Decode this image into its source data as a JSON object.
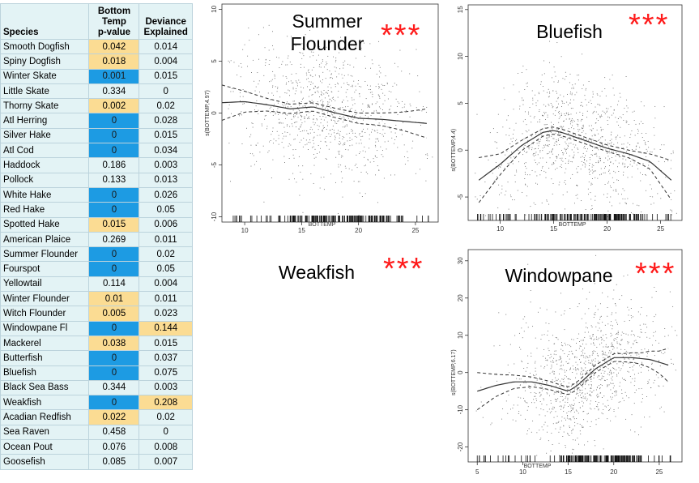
{
  "table": {
    "headers": {
      "species": "Species",
      "pvalue_line1": "Bottom",
      "pvalue_line2": "Temp",
      "pvalue_line3": "p-value",
      "dev_line1": "Deviance",
      "dev_line2": "Explained"
    },
    "colors": {
      "significant_blue": "#1d9be3",
      "highlight_yellow": "#fbdc93",
      "cell_bg": "#e3f3f5"
    },
    "rows": [
      {
        "species": "Smooth Dogfish",
        "pvalue": "0.042",
        "deviance": "0.014",
        "p_hl": "yellow",
        "d_hl": ""
      },
      {
        "species": "Spiny Dogfish",
        "pvalue": "0.018",
        "deviance": "0.004",
        "p_hl": "yellow",
        "d_hl": ""
      },
      {
        "species": "Winter Skate",
        "pvalue": "0.001",
        "deviance": "0.015",
        "p_hl": "blue",
        "d_hl": ""
      },
      {
        "species": "Little Skate",
        "pvalue": "0.334",
        "deviance": "0",
        "p_hl": "",
        "d_hl": ""
      },
      {
        "species": "Thorny Skate",
        "pvalue": "0.002",
        "deviance": "0.02",
        "p_hl": "yellow",
        "d_hl": ""
      },
      {
        "species": "Atl Herring",
        "pvalue": "0",
        "deviance": "0.028",
        "p_hl": "blue",
        "d_hl": ""
      },
      {
        "species": "Silver Hake",
        "pvalue": "0",
        "deviance": "0.015",
        "p_hl": "blue",
        "d_hl": ""
      },
      {
        "species": "Atl Cod",
        "pvalue": "0",
        "deviance": "0.034",
        "p_hl": "blue",
        "d_hl": ""
      },
      {
        "species": "Haddock",
        "pvalue": "0.186",
        "deviance": "0.003",
        "p_hl": "",
        "d_hl": ""
      },
      {
        "species": "Pollock",
        "pvalue": "0.133",
        "deviance": "0.013",
        "p_hl": "",
        "d_hl": ""
      },
      {
        "species": "White Hake",
        "pvalue": "0",
        "deviance": "0.026",
        "p_hl": "blue",
        "d_hl": ""
      },
      {
        "species": "Red Hake",
        "pvalue": "0",
        "deviance": "0.05",
        "p_hl": "blue",
        "d_hl": ""
      },
      {
        "species": "Spotted Hake",
        "pvalue": "0.015",
        "deviance": "0.006",
        "p_hl": "yellow",
        "d_hl": ""
      },
      {
        "species": "American Plaice",
        "pvalue": "0.269",
        "deviance": "0.011",
        "p_hl": "",
        "d_hl": ""
      },
      {
        "species": "Summer Flounder",
        "pvalue": "0",
        "deviance": "0.02",
        "p_hl": "blue",
        "d_hl": ""
      },
      {
        "species": "Fourspot",
        "pvalue": "0",
        "deviance": "0.05",
        "p_hl": "blue",
        "d_hl": ""
      },
      {
        "species": "Yellowtail",
        "pvalue": "0.114",
        "deviance": "0.004",
        "p_hl": "",
        "d_hl": ""
      },
      {
        "species": "Winter Flounder",
        "pvalue": "0.01",
        "deviance": "0.011",
        "p_hl": "yellow",
        "d_hl": ""
      },
      {
        "species": "Witch Flounder",
        "pvalue": "0.005",
        "deviance": "0.023",
        "p_hl": "yellow",
        "d_hl": ""
      },
      {
        "species": "Windowpane Fl",
        "pvalue": "0",
        "deviance": "0.144",
        "p_hl": "blue",
        "d_hl": "yellow"
      },
      {
        "species": "Mackerel",
        "pvalue": "0.038",
        "deviance": "0.015",
        "p_hl": "yellow",
        "d_hl": ""
      },
      {
        "species": "Butterfish",
        "pvalue": "0",
        "deviance": "0.037",
        "p_hl": "blue",
        "d_hl": ""
      },
      {
        "species": "Bluefish",
        "pvalue": "0",
        "deviance": "0.075",
        "p_hl": "blue",
        "d_hl": ""
      },
      {
        "species": "Black Sea Bass",
        "pvalue": "0.344",
        "deviance": "0.003",
        "p_hl": "",
        "d_hl": ""
      },
      {
        "species": "Weakfish",
        "pvalue": "0",
        "deviance": "0.208",
        "p_hl": "blue",
        "d_hl": "yellow"
      },
      {
        "species": "Acadian Redfish",
        "pvalue": "0.022",
        "deviance": "0.02",
        "p_hl": "yellow",
        "d_hl": ""
      },
      {
        "species": "Sea Raven",
        "pvalue": "0.458",
        "deviance": "0",
        "p_hl": "",
        "d_hl": ""
      },
      {
        "species": "Ocean Pout",
        "pvalue": "0.076",
        "deviance": "0.008",
        "p_hl": "",
        "d_hl": ""
      },
      {
        "species": "Goosefish",
        "pvalue": "0.085",
        "deviance": "0.007",
        "p_hl": "",
        "d_hl": ""
      }
    ]
  },
  "labels": {
    "summer_title_1": "Summer",
    "summer_title_2": "Flounder",
    "bluefish_title": "Bluefish",
    "weakfish_title": "Weakfish",
    "windowpane_title": "Windowpane",
    "stars": "***",
    "star_color": "#ff1a1a"
  },
  "chart_data": [
    {
      "type": "scatter",
      "title": "Summer Flounder",
      "xlabel": "BOTTEMP",
      "ylabel": "s(BOTTEMP,4.97)",
      "xlim": [
        8,
        27
      ],
      "ylim": [
        -10.5,
        10.5
      ],
      "xticks": [
        10,
        15,
        20,
        25
      ],
      "yticks": [
        -10,
        -5,
        0,
        5,
        10
      ],
      "ytick_labels": [
        "-10",
        "-5",
        "0",
        "5",
        "10"
      ],
      "xtick_labels": [
        "10",
        "15",
        "20",
        "25"
      ],
      "smooth": {
        "x": [
          8,
          10,
          12,
          14,
          16,
          18,
          20,
          22,
          24,
          26
        ],
        "y": [
          1.0,
          1.1,
          0.8,
          0.4,
          0.6,
          0.0,
          -0.5,
          -0.6,
          -0.8,
          -1.0
        ]
      },
      "band_halfwidth": {
        "x": [
          8,
          10,
          12,
          14,
          16,
          18,
          20,
          22,
          24,
          26
        ],
        "y": [
          1.7,
          1.0,
          0.6,
          0.45,
          0.4,
          0.45,
          0.5,
          0.6,
          0.9,
          1.4
        ]
      },
      "scatter_spread": 3.2,
      "significance": "***"
    },
    {
      "type": "scatter",
      "title": "Bluefish",
      "xlabel": "BOTTEMP",
      "ylabel": "s(BOTTEMP,4.4)",
      "xlim": [
        7,
        27
      ],
      "ylim": [
        -7.5,
        15.5
      ],
      "xticks": [
        10,
        15,
        20,
        25
      ],
      "yticks": [
        -5,
        0,
        5,
        10,
        15
      ],
      "ytick_labels": [
        "-5",
        "0",
        "5",
        "10",
        "15"
      ],
      "xtick_labels": [
        "10",
        "15",
        "20",
        "25"
      ],
      "smooth": {
        "x": [
          8,
          10,
          12,
          14,
          15,
          16,
          18,
          20,
          22,
          24,
          26
        ],
        "y": [
          -3.2,
          -1.5,
          0.5,
          1.9,
          2.1,
          1.8,
          1.0,
          0.2,
          -0.4,
          -1.2,
          -3.2
        ]
      },
      "band_halfwidth": {
        "x": [
          8,
          10,
          12,
          14,
          16,
          18,
          20,
          22,
          24,
          26
        ],
        "y": [
          2.4,
          1.1,
          0.55,
          0.4,
          0.35,
          0.35,
          0.35,
          0.4,
          0.8,
          2.1
        ]
      },
      "scatter_spread": 3.5,
      "significance": "***"
    },
    {
      "type": "scatter",
      "title": "Windowpane",
      "xlabel": "BOTTEMP",
      "ylabel": "s(BOTTEMP,6.17)",
      "xlim": [
        4,
        27.5
      ],
      "ylim": [
        -24,
        33
      ],
      "xticks": [
        5,
        10,
        15,
        20,
        25
      ],
      "yticks": [
        -20,
        -10,
        0,
        10,
        20,
        30
      ],
      "ytick_labels": [
        "-20",
        "-10",
        "0",
        "10",
        "20",
        "30"
      ],
      "xtick_labels": [
        "5",
        "10",
        "15",
        "20",
        "25"
      ],
      "smooth": {
        "x": [
          5,
          7,
          9,
          11,
          13,
          15,
          16,
          18,
          20,
          22,
          24,
          26
        ],
        "y": [
          -5,
          -3.5,
          -2.5,
          -2.5,
          -3.5,
          -5,
          -3.5,
          1,
          4,
          4,
          3.5,
          2
        ]
      },
      "band_halfwidth": {
        "x": [
          5,
          7,
          9,
          11,
          13,
          15,
          17,
          19,
          21,
          23,
          25,
          26
        ],
        "y": [
          5,
          3,
          1.8,
          1.3,
          1.1,
          1.0,
          1.0,
          1.0,
          1.1,
          1.5,
          3.0,
          4.5
        ]
      },
      "scatter_spread": 9,
      "significance": "***"
    }
  ]
}
